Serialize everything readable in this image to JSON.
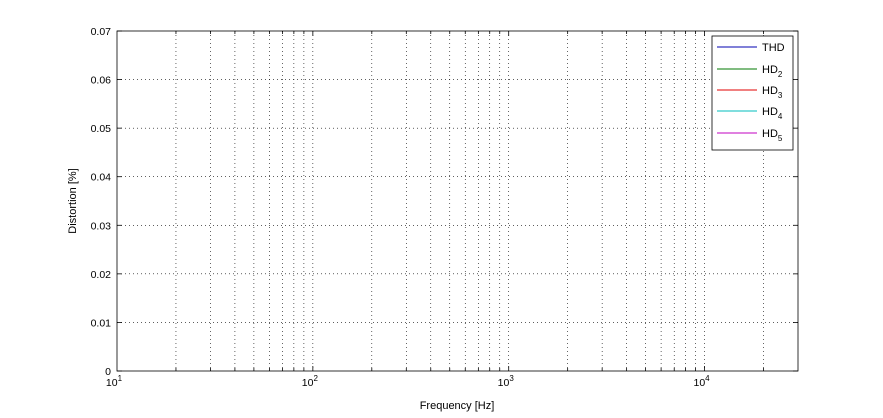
{
  "chart_data": {
    "type": "line",
    "title": "",
    "xlabel": "Frequency [Hz]",
    "ylabel": "Distortion [%]",
    "xscale": "log",
    "xlim": [
      10,
      30000
    ],
    "ylim": [
      0,
      0.07
    ],
    "grid": true,
    "legend_position": "top-right",
    "x_ticks": [
      {
        "value": 10,
        "base": "10",
        "exp": "1"
      },
      {
        "value": 100,
        "base": "10",
        "exp": "2"
      },
      {
        "value": 1000,
        "base": "10",
        "exp": "3"
      },
      {
        "value": 10000,
        "base": "10",
        "exp": "4"
      }
    ],
    "y_ticks": [
      {
        "value": 0,
        "label": "0"
      },
      {
        "value": 0.01,
        "label": "0.01"
      },
      {
        "value": 0.02,
        "label": "0.02"
      },
      {
        "value": 0.03,
        "label": "0.03"
      },
      {
        "value": 0.04,
        "label": "0.04"
      },
      {
        "value": 0.05,
        "label": "0.05"
      },
      {
        "value": 0.06,
        "label": "0.06"
      },
      {
        "value": 0.07,
        "label": "0.07"
      }
    ],
    "series": [
      {
        "name": "THD",
        "name_base": "THD",
        "name_sub": "",
        "color": "#0000b0"
      },
      {
        "name": "HD2",
        "name_base": "HD",
        "name_sub": "2",
        "color": "#007a00"
      },
      {
        "name": "HD3",
        "name_base": "HD",
        "name_sub": "3",
        "color": "#e00000"
      },
      {
        "name": "HD4",
        "name_base": "HD",
        "name_sub": "4",
        "color": "#00bcbc"
      },
      {
        "name": "HD5",
        "name_base": "HD",
        "name_sub": "5",
        "color": "#c000c0"
      }
    ]
  }
}
